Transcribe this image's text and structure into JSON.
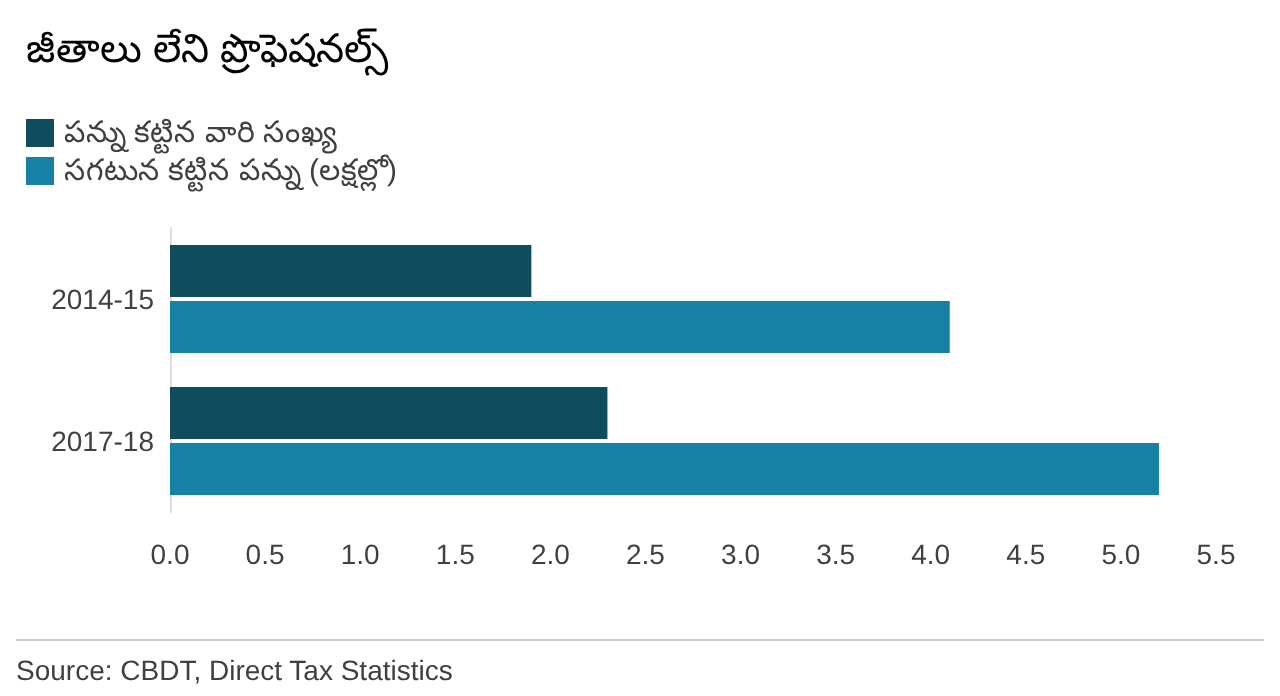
{
  "chart_data": {
    "type": "bar",
    "orientation": "horizontal",
    "title": "జీతాలు లేని ప్రొఫెషనల్స్",
    "categories": [
      "2014-15",
      "2017-18"
    ],
    "series": [
      {
        "name": "పన్ను కట్టిన వారి సంఖ్య",
        "color": "#0f4c5c",
        "values": [
          1.9,
          2.3
        ]
      },
      {
        "name": "సగటున కట్టిన పన్ను (లక్షల్లో)",
        "color": "#1681a5",
        "values": [
          4.1,
          5.2
        ]
      }
    ],
    "xlim": [
      0,
      5.5
    ],
    "xticks": [
      {
        "value": 0,
        "label": "0.0"
      },
      {
        "value": 0.5,
        "label": "0.5"
      },
      {
        "value": 1,
        "label": "1.0"
      },
      {
        "value": 1.5,
        "label": "1.5"
      },
      {
        "value": 2,
        "label": "2.0"
      },
      {
        "value": 2.5,
        "label": "2.5"
      },
      {
        "value": 3,
        "label": "3.0"
      },
      {
        "value": 3.5,
        "label": "3.5"
      },
      {
        "value": 4,
        "label": "4.0"
      },
      {
        "value": 4.5,
        "label": "4.5"
      },
      {
        "value": 5,
        "label": "5.0"
      },
      {
        "value": 5.5,
        "label": "5.5"
      }
    ],
    "grid": false,
    "legend": "top left",
    "annotations": [
      "Source: CBDT, Direct Tax Statistics"
    ]
  }
}
